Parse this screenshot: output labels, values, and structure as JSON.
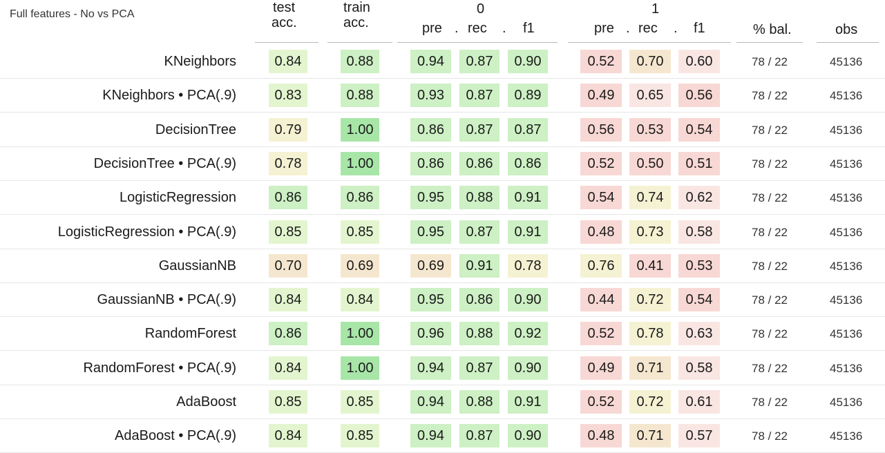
{
  "chart_data": {
    "type": "table",
    "title": "Full features - No vs PCA",
    "group_headers": {
      "class0": "0",
      "class1": "1"
    },
    "columns": {
      "test_acc": [
        "test",
        "acc."
      ],
      "train_acc": [
        "train",
        "acc."
      ],
      "pre0": "pre",
      "sep0a": ".",
      "rec0": "rec",
      "sep0b": ".",
      "f10": "f1",
      "pre1": "pre",
      "sep1a": ".",
      "rec1": "rec",
      "sep1b": ".",
      "f11": "f1",
      "bal": "% bal.",
      "obs": "obs"
    },
    "rows": [
      {
        "model": "KNeighbors",
        "test_acc": "0.84",
        "train_acc": "0.88",
        "pre0": "0.94",
        "rec0": "0.87",
        "f10": "0.90",
        "pre1": "0.52",
        "rec1": "0.70",
        "f11": "0.60",
        "bal": "78 / 22",
        "obs": "45136"
      },
      {
        "model": "KNeighbors • PCA(.9)",
        "test_acc": "0.83",
        "train_acc": "0.88",
        "pre0": "0.93",
        "rec0": "0.87",
        "f10": "0.89",
        "pre1": "0.49",
        "rec1": "0.65",
        "f11": "0.56",
        "bal": "78 / 22",
        "obs": "45136"
      },
      {
        "model": "DecisionTree",
        "test_acc": "0.79",
        "train_acc": "1.00",
        "pre0": "0.86",
        "rec0": "0.87",
        "f10": "0.87",
        "pre1": "0.56",
        "rec1": "0.53",
        "f11": "0.54",
        "bal": "78 / 22",
        "obs": "45136"
      },
      {
        "model": "DecisionTree • PCA(.9)",
        "test_acc": "0.78",
        "train_acc": "1.00",
        "pre0": "0.86",
        "rec0": "0.86",
        "f10": "0.86",
        "pre1": "0.52",
        "rec1": "0.50",
        "f11": "0.51",
        "bal": "78 / 22",
        "obs": "45136"
      },
      {
        "model": "LogisticRegression",
        "test_acc": "0.86",
        "train_acc": "0.86",
        "pre0": "0.95",
        "rec0": "0.88",
        "f10": "0.91",
        "pre1": "0.54",
        "rec1": "0.74",
        "f11": "0.62",
        "bal": "78 / 22",
        "obs": "45136"
      },
      {
        "model": "LogisticRegression • PCA(.9)",
        "test_acc": "0.85",
        "train_acc": "0.85",
        "pre0": "0.95",
        "rec0": "0.87",
        "f10": "0.91",
        "pre1": "0.48",
        "rec1": "0.73",
        "f11": "0.58",
        "bal": "78 / 22",
        "obs": "45136"
      },
      {
        "model": "GaussianNB",
        "test_acc": "0.70",
        "train_acc": "0.69",
        "pre0": "0.69",
        "rec0": "0.91",
        "f10": "0.78",
        "pre1": "0.76",
        "rec1": "0.41",
        "f11": "0.53",
        "bal": "78 / 22",
        "obs": "45136"
      },
      {
        "model": "GaussianNB • PCA(.9)",
        "test_acc": "0.84",
        "train_acc": "0.84",
        "pre0": "0.95",
        "rec0": "0.86",
        "f10": "0.90",
        "pre1": "0.44",
        "rec1": "0.72",
        "f11": "0.54",
        "bal": "78 / 22",
        "obs": "45136"
      },
      {
        "model": "RandomForest",
        "test_acc": "0.86",
        "train_acc": "1.00",
        "pre0": "0.96",
        "rec0": "0.88",
        "f10": "0.92",
        "pre1": "0.52",
        "rec1": "0.78",
        "f11": "0.63",
        "bal": "78 / 22",
        "obs": "45136"
      },
      {
        "model": "RandomForest • PCA(.9)",
        "test_acc": "0.84",
        "train_acc": "1.00",
        "pre0": "0.94",
        "rec0": "0.87",
        "f10": "0.90",
        "pre1": "0.49",
        "rec1": "0.71",
        "f11": "0.58",
        "bal": "78 / 22",
        "obs": "45136"
      },
      {
        "model": "AdaBoost",
        "test_acc": "0.85",
        "train_acc": "0.85",
        "pre0": "0.94",
        "rec0": "0.88",
        "f10": "0.91",
        "pre1": "0.52",
        "rec1": "0.72",
        "f11": "0.61",
        "bal": "78 / 22",
        "obs": "45136"
      },
      {
        "model": "AdaBoost • PCA(.9)",
        "test_acc": "0.84",
        "train_acc": "0.85",
        "pre0": "0.94",
        "rec0": "0.87",
        "f10": "0.90",
        "pre1": "0.48",
        "rec1": "0.71",
        "f11": "0.57",
        "bal": "78 / 22",
        "obs": "45136"
      }
    ]
  },
  "colors": {
    "good_strong": "#a8e6a8",
    "good": "#cdf0c4",
    "good_light": "#e3f5cf",
    "neutral": "#f4f2d2",
    "warm": "#f5e7cf",
    "bad_light": "#f9e6e2",
    "bad": "#f8d8d4",
    "bad_pink": "#fbe1e6"
  }
}
